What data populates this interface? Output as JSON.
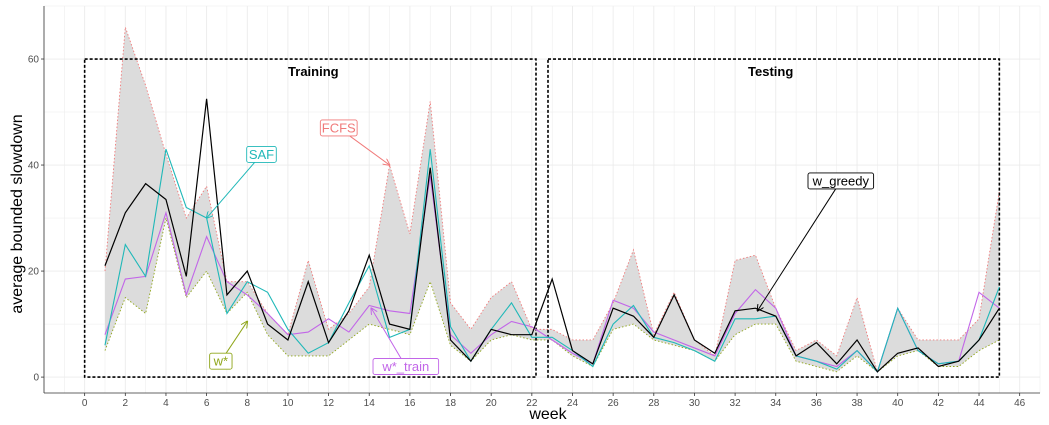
{
  "chart_data": {
    "type": "line",
    "xlabel": "week",
    "ylabel": "average bounded slowdown",
    "xlim": [
      -2,
      47
    ],
    "ylim": [
      -3,
      70
    ],
    "xticks": [
      0,
      2,
      4,
      6,
      8,
      10,
      12,
      14,
      16,
      18,
      20,
      22,
      24,
      26,
      28,
      30,
      32,
      34,
      36,
      38,
      40,
      42,
      44,
      46
    ],
    "yticks": [
      0,
      20,
      40,
      60
    ],
    "grid": true,
    "x": [
      1,
      2,
      3,
      4,
      5,
      6,
      7,
      8,
      9,
      10,
      11,
      12,
      13,
      14,
      15,
      16,
      17,
      18,
      19,
      20,
      21,
      22,
      23,
      24,
      25,
      26,
      27,
      28,
      29,
      30,
      31,
      32,
      33,
      34,
      35,
      36,
      37,
      38,
      39,
      40,
      41,
      42,
      43,
      44,
      45
    ],
    "band": {
      "upper_name": "FCFS",
      "upper": [
        20,
        66,
        55,
        42,
        30,
        36,
        18,
        18,
        12,
        8,
        22,
        9,
        12,
        17,
        40,
        27,
        52,
        14,
        9,
        15,
        18,
        9,
        9,
        7,
        7,
        14,
        24,
        8,
        16,
        7,
        4,
        22,
        23,
        13,
        5,
        7,
        4,
        15,
        1,
        13,
        7,
        7,
        7,
        11,
        35
      ],
      "lower": [
        5,
        15,
        12,
        30,
        15,
        20,
        12,
        16,
        8,
        4,
        4,
        4,
        7,
        10,
        9,
        8,
        18,
        6,
        3,
        7,
        8,
        7,
        7,
        4,
        2,
        9,
        10,
        7,
        6,
        5,
        3,
        8,
        10,
        10,
        3,
        2,
        1,
        4,
        1,
        4,
        5,
        2,
        2,
        5,
        7
      ],
      "upper_color": "#f07a7a",
      "lower_color": "#8fa61a",
      "fill_color": "#dcdcdc"
    },
    "series": [
      {
        "name": "w_greedy",
        "color": "#000000",
        "values": [
          21,
          31,
          36.5,
          33.5,
          19,
          52.5,
          15.5,
          20,
          10,
          7,
          18,
          6.5,
          12.5,
          23,
          10,
          9,
          39.5,
          7,
          3,
          9,
          8,
          8,
          18.5,
          5,
          2.5,
          13,
          11.5,
          7.5,
          15.5,
          7,
          4.5,
          12.5,
          13,
          11.5,
          4,
          6.5,
          2.5,
          7,
          1,
          4.5,
          5.5,
          2,
          3,
          7,
          13
        ]
      },
      {
        "name": "SAF",
        "color": "#1fb8b8",
        "values": [
          6,
          25,
          19,
          43,
          32,
          30,
          12,
          18,
          16,
          9,
          4.5,
          6.5,
          14,
          21,
          7.5,
          9,
          43,
          9.5,
          3,
          9,
          14,
          7.5,
          7.5,
          5,
          2,
          10,
          13.5,
          7.5,
          6.5,
          5,
          3,
          11,
          11,
          11.5,
          4,
          3,
          1.5,
          5,
          1,
          13,
          5,
          2.5,
          3,
          7,
          17
        ]
      },
      {
        "name": "w*_train",
        "color": "#c266e8",
        "values": [
          8,
          18.5,
          19,
          31,
          15.5,
          26.5,
          18,
          15.5,
          12,
          8,
          8.5,
          11,
          8.5,
          13.5,
          12.5,
          12,
          38,
          8,
          4.5,
          8,
          10.5,
          9.5,
          7,
          4.5,
          2.5,
          14.5,
          13,
          8.5,
          7,
          5.5,
          4,
          12,
          16.5,
          13,
          4,
          3,
          2,
          5,
          1,
          13,
          5,
          2.5,
          3,
          16,
          13
        ]
      }
    ],
    "regions": [
      {
        "label": "Training",
        "x0": 0,
        "x1": 22.5,
        "y0": 0,
        "y1": 60
      },
      {
        "label": "Testing",
        "x0": 22.5,
        "x1": 45,
        "y0": 0,
        "y1": 60
      }
    ],
    "annotations": [
      {
        "label": "FCFS",
        "color": "#f07a7a",
        "text_x": 12.5,
        "text_y": 47,
        "arrow_x": 15,
        "arrow_y": 40
      },
      {
        "label": "SAF",
        "color": "#1fb8b8",
        "text_x": 8.7,
        "text_y": 42,
        "arrow_x": 6,
        "arrow_y": 30
      },
      {
        "label": "w_greedy",
        "color": "#000000",
        "text_x": 37.2,
        "text_y": 37,
        "arrow_x": 33.1,
        "arrow_y": 12.5
      },
      {
        "label": "w*",
        "color": "#8fa61a",
        "text_x": 6.7,
        "text_y": 3,
        "arrow_x": 8.0,
        "arrow_y": 10.5
      },
      {
        "label": "w*_train",
        "color": "#c266e8",
        "text_x": 15.8,
        "text_y": 2,
        "arrow_x": 14.1,
        "arrow_y": 13
      }
    ]
  }
}
